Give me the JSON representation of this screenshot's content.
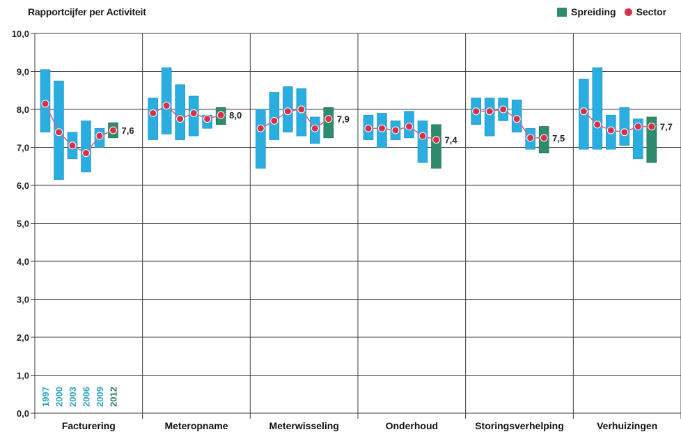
{
  "chart_data": {
    "type": "bar",
    "title": "Rapportcijfer per Activiteit",
    "legend": {
      "position": "top-right",
      "items": [
        {
          "label": "Spreiding",
          "color": "#2f8b6e"
        },
        {
          "label": "Sector",
          "color": "#d9304a"
        }
      ]
    },
    "ylim": [
      0,
      10
    ],
    "yticks": [
      "0,0",
      "1,0",
      "2,0",
      "3,0",
      "4,0",
      "5,0",
      "6,0",
      "7,0",
      "8,0",
      "9,0",
      "10,0"
    ],
    "grid": true,
    "years": [
      "1997",
      "2000",
      "2003",
      "2006",
      "2009",
      "2012"
    ],
    "categories": [
      "Facturering",
      "Meteropname",
      "Meterwisseling",
      "Onderhoud",
      "Storingsverhelping",
      "Verhuizingen"
    ],
    "groups": [
      {
        "name": "Facturering",
        "final_label": "7,6",
        "ranges": [
          [
            7.4,
            9.05
          ],
          [
            6.15,
            8.75
          ],
          [
            6.7,
            7.4
          ],
          [
            6.35,
            7.7
          ],
          [
            7.0,
            7.5
          ],
          [
            7.25,
            7.65
          ]
        ],
        "sector": [
          8.15,
          7.4,
          7.05,
          6.85,
          7.3,
          7.45
        ]
      },
      {
        "name": "Meteropname",
        "final_label": "8,0",
        "ranges": [
          [
            7.2,
            8.3
          ],
          [
            7.35,
            9.1
          ],
          [
            7.2,
            8.65
          ],
          [
            7.3,
            8.35
          ],
          [
            7.5,
            7.85
          ],
          [
            7.6,
            8.05
          ]
        ],
        "sector": [
          7.9,
          8.1,
          7.75,
          7.9,
          7.75,
          7.85
        ]
      },
      {
        "name": "Meterwisseling",
        "final_label": "7,9",
        "ranges": [
          [
            6.45,
            8.0
          ],
          [
            7.2,
            8.45
          ],
          [
            7.4,
            8.6
          ],
          [
            7.3,
            8.55
          ],
          [
            7.1,
            7.8
          ],
          [
            7.25,
            8.05
          ]
        ],
        "sector": [
          7.5,
          7.7,
          7.95,
          8.0,
          7.5,
          7.75
        ]
      },
      {
        "name": "Onderhoud",
        "final_label": "7,4",
        "ranges": [
          [
            7.2,
            7.85
          ],
          [
            7.0,
            7.9
          ],
          [
            7.2,
            7.7
          ],
          [
            7.25,
            7.95
          ],
          [
            6.6,
            7.7
          ],
          [
            6.45,
            7.6
          ]
        ],
        "sector": [
          7.5,
          7.5,
          7.45,
          7.55,
          7.3,
          7.2
        ]
      },
      {
        "name": "Storingsverhelping",
        "final_label": "7,5",
        "ranges": [
          [
            7.6,
            8.3
          ],
          [
            7.3,
            8.3
          ],
          [
            7.7,
            8.3
          ],
          [
            7.4,
            8.25
          ],
          [
            6.95,
            7.5
          ],
          [
            6.85,
            7.55
          ]
        ],
        "sector": [
          7.95,
          7.95,
          8.0,
          7.75,
          7.25,
          7.25
        ]
      },
      {
        "name": "Verhuizingen",
        "final_label": "7,7",
        "ranges": [
          [
            6.95,
            8.8
          ],
          [
            6.95,
            9.1
          ],
          [
            6.95,
            7.85
          ],
          [
            7.05,
            8.05
          ],
          [
            6.7,
            7.75
          ],
          [
            6.6,
            7.8
          ]
        ],
        "sector": [
          7.95,
          7.6,
          7.45,
          7.4,
          7.55,
          7.55
        ]
      }
    ],
    "colors": {
      "range": "#2aaee0",
      "range_final": "#2f8b6e",
      "sector": "#d9304a",
      "line": "#cc6a88",
      "year_label": "#2fa5c4",
      "year_final": "#2c7d5f"
    }
  }
}
